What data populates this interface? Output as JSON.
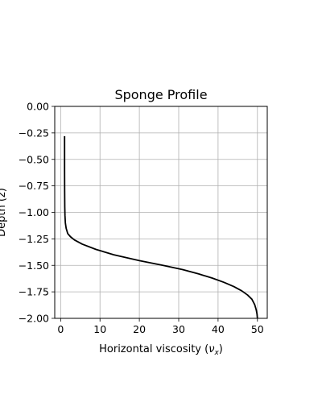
{
  "chart_data": {
    "type": "line",
    "title": "Sponge Profile",
    "xlabel_main": "Horizontal viscosity (",
    "xlabel_symbol": "ν",
    "xlabel_sub": "x",
    "xlabel_close": ")",
    "ylabel": "Depth (z)",
    "xlim": [
      -1.5,
      52.5
    ],
    "ylim": [
      -2.0,
      0.0
    ],
    "xticks": [
      0,
      10,
      20,
      30,
      40,
      50
    ],
    "xtick_labels": [
      "0",
      "10",
      "20",
      "30",
      "40",
      "50"
    ],
    "yticks": [
      0.0,
      -0.25,
      -0.5,
      -0.75,
      -1.0,
      -1.25,
      -1.5,
      -1.75,
      -2.0
    ],
    "ytick_labels": [
      "0.00",
      "−0.25",
      "−0.50",
      "−0.75",
      "−1.00",
      "−1.25",
      "−1.50",
      "−1.75",
      "−2.00"
    ],
    "grid": true,
    "series": [
      {
        "color": "#000000",
        "x": [
          1.0,
          1.0,
          1.02,
          1.05,
          1.1,
          1.2,
          1.4,
          1.8,
          2.5,
          3.5,
          5.5,
          9.0,
          13.5,
          20.0,
          26.0,
          31.0,
          35.0,
          38.5,
          41.5,
          44.0,
          46.0,
          47.5,
          48.6,
          49.3,
          49.7,
          49.9,
          50.0
        ],
        "y": [
          -0.28,
          -0.6,
          -0.8,
          -0.95,
          -1.03,
          -1.1,
          -1.15,
          -1.2,
          -1.23,
          -1.26,
          -1.3,
          -1.35,
          -1.4,
          -1.455,
          -1.5,
          -1.54,
          -1.58,
          -1.62,
          -1.66,
          -1.7,
          -1.74,
          -1.78,
          -1.82,
          -1.87,
          -1.92,
          -1.96,
          -2.0
        ]
      }
    ]
  }
}
